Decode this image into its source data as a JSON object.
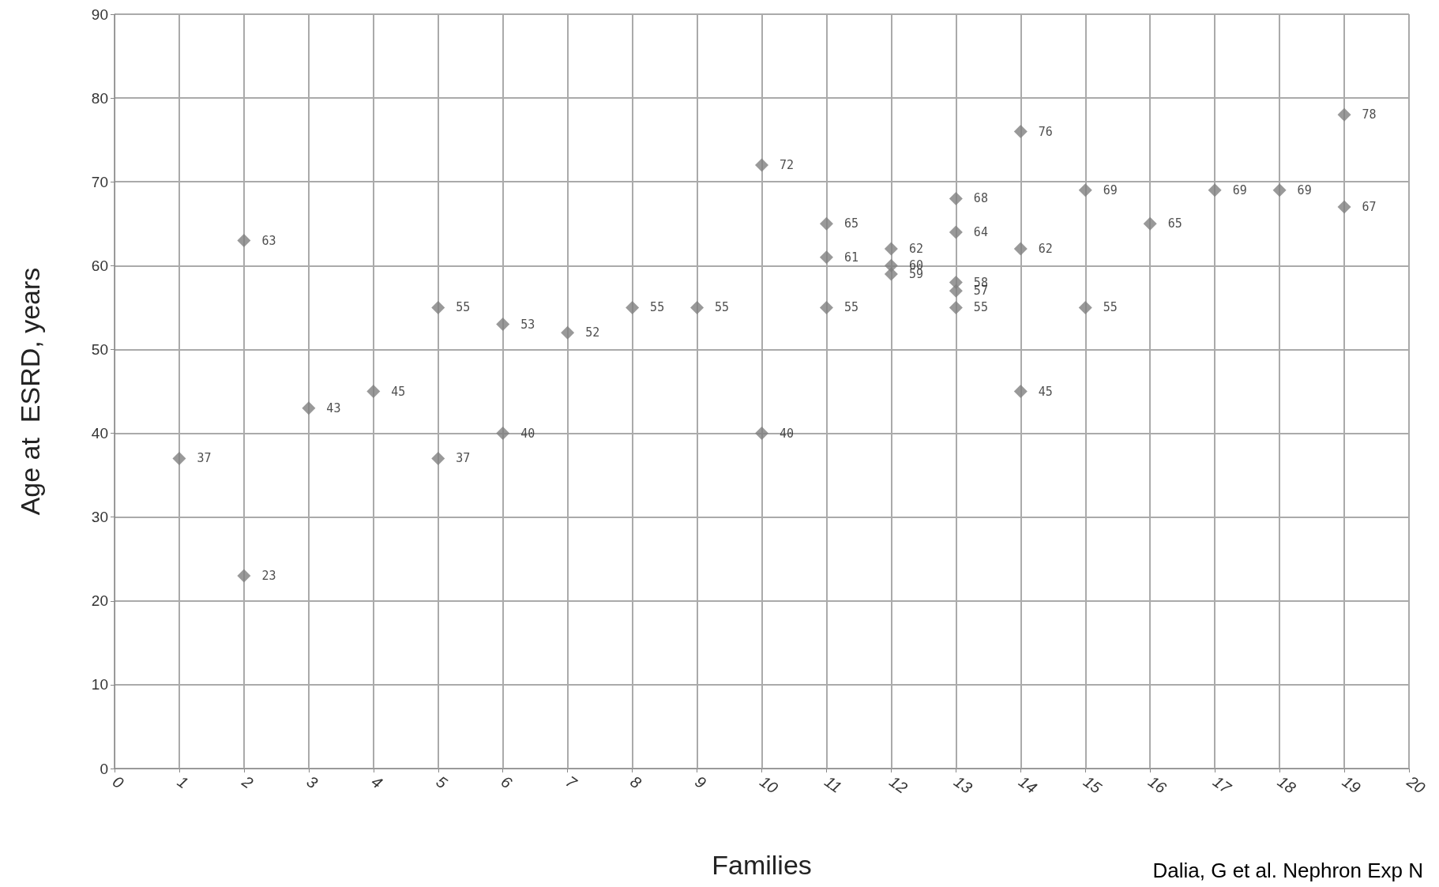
{
  "chart_data": {
    "type": "scatter",
    "xlabel": "Families",
    "ylabel": "Age at  ESRD, years",
    "annotations": [
      "Dalia, G et al. Nephron Exp N"
    ],
    "series": [
      {
        "color": "#7f7f7f",
        "x": [
          1,
          2,
          2,
          3,
          4,
          5,
          5,
          6,
          6,
          7,
          8,
          9,
          10,
          10,
          11,
          11,
          11,
          12,
          12,
          12,
          13,
          13,
          13,
          13,
          13,
          14,
          14,
          14,
          15,
          15,
          16,
          17,
          18,
          19,
          19
        ],
        "values": [
          37,
          63,
          23,
          43,
          45,
          55,
          37,
          53,
          40,
          52,
          55,
          55,
          72,
          40,
          65,
          61,
          55,
          62,
          60,
          59,
          68,
          64,
          58,
          57,
          55,
          76,
          62,
          45,
          69,
          55,
          65,
          69,
          69,
          78,
          67
        ]
      }
    ],
    "xlim": [
      0,
      20
    ],
    "xticks": [
      0,
      1,
      2,
      3,
      4,
      5,
      6,
      7,
      8,
      9,
      10,
      11,
      12,
      13,
      14,
      15,
      16,
      17,
      18,
      19,
      20
    ],
    "ylim": [
      0,
      90
    ],
    "yticks": [
      0,
      10,
      20,
      30,
      40,
      50,
      60,
      70,
      80,
      90
    ],
    "grid": true,
    "marker": "diamond",
    "data_labels": true
  }
}
